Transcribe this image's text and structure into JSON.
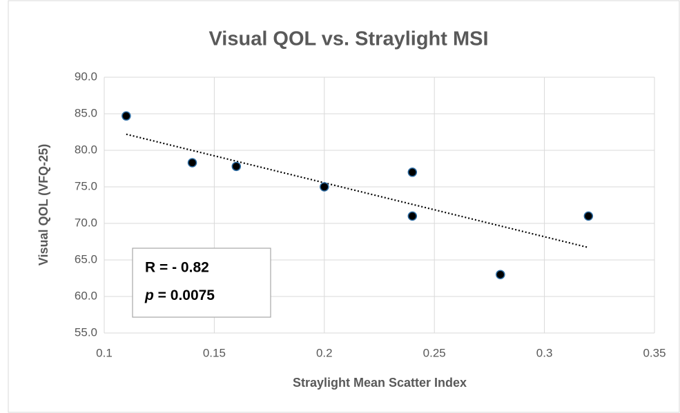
{
  "chart_data": {
    "type": "scatter",
    "title": "Visual QOL vs. Straylight MSI",
    "x_label": "Straylight Mean Scatter Index",
    "y_label": "Visual QOL (VFQ-25)",
    "x": [
      0.11,
      0.14,
      0.16,
      0.2,
      0.24,
      0.24,
      0.28,
      0.32
    ],
    "values": [
      84.7,
      78.3,
      77.8,
      75.0,
      77.0,
      71.0,
      63.0,
      71.0
    ],
    "color": "#000000",
    "edge_color": "#2e6da4",
    "trendline": "linear",
    "xlim": [
      0.1,
      0.35
    ],
    "xticks": [
      0.1,
      0.15,
      0.2,
      0.25,
      0.3,
      0.35
    ],
    "ylim": [
      55,
      90
    ],
    "yticks": [
      {
        "value": 55,
        "label": "55.0"
      },
      {
        "value": 60,
        "label": "60.0"
      },
      {
        "value": 65,
        "label": "65.0"
      },
      {
        "value": 70,
        "label": "70.0"
      },
      {
        "value": 75,
        "label": "75.0"
      },
      {
        "value": 80,
        "label": "80.0"
      },
      {
        "value": 85,
        "label": "85.0"
      },
      {
        "value": 90,
        "label": "90.0"
      }
    ],
    "grid": true,
    "annotation_r": "R = - 0.82",
    "annotation_p_symbol": "p",
    "annotation_p_text": " = 0.0075"
  }
}
